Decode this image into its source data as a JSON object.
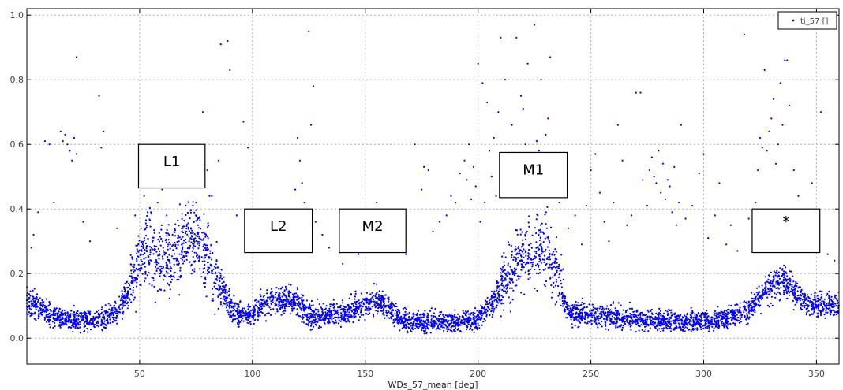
{
  "chart_data": {
    "type": "scatter",
    "title": "",
    "xlabel": "WDs_57_mean [deg]",
    "ylabel": "",
    "xlim": [
      0,
      360
    ],
    "ylim": [
      -0.08,
      1.02
    ],
    "xticks": [
      50,
      100,
      150,
      200,
      250,
      300,
      350
    ],
    "yticks": [
      0.0,
      0.2,
      0.4,
      0.6,
      0.8,
      1.0
    ],
    "xtick_labels": [
      "50",
      "100",
      "150",
      "200",
      "250",
      "300",
      "350"
    ],
    "ytick_labels": [
      "0.0",
      "0.2",
      "0.4",
      "0.6",
      "0.8",
      "1.0"
    ],
    "grid": true,
    "legend_position": "top-right",
    "series": [
      {
        "name": "ti_57 []",
        "color": "#0000ff",
        "marker": "dot",
        "trend": [
          [
            0,
            0.12
          ],
          [
            5,
            0.1
          ],
          [
            10,
            0.07
          ],
          [
            20,
            0.055
          ],
          [
            30,
            0.055
          ],
          [
            40,
            0.08
          ],
          [
            45,
            0.14
          ],
          [
            50,
            0.24
          ],
          [
            55,
            0.28
          ],
          [
            60,
            0.22
          ],
          [
            65,
            0.25
          ],
          [
            70,
            0.3
          ],
          [
            75,
            0.3
          ],
          [
            80,
            0.26
          ],
          [
            85,
            0.17
          ],
          [
            90,
            0.1
          ],
          [
            95,
            0.07
          ],
          [
            100,
            0.08
          ],
          [
            105,
            0.1
          ],
          [
            110,
            0.12
          ],
          [
            115,
            0.12
          ],
          [
            120,
            0.11
          ],
          [
            125,
            0.07
          ],
          [
            130,
            0.07
          ],
          [
            140,
            0.08
          ],
          [
            150,
            0.1
          ],
          [
            155,
            0.12
          ],
          [
            160,
            0.1
          ],
          [
            165,
            0.06
          ],
          [
            170,
            0.05
          ],
          [
            180,
            0.05
          ],
          [
            190,
            0.05
          ],
          [
            200,
            0.06
          ],
          [
            205,
            0.1
          ],
          [
            210,
            0.15
          ],
          [
            215,
            0.22
          ],
          [
            220,
            0.25
          ],
          [
            225,
            0.27
          ],
          [
            230,
            0.27
          ],
          [
            235,
            0.2
          ],
          [
            240,
            0.08
          ],
          [
            250,
            0.07
          ],
          [
            270,
            0.06
          ],
          [
            290,
            0.05
          ],
          [
            310,
            0.06
          ],
          [
            320,
            0.09
          ],
          [
            325,
            0.13
          ],
          [
            330,
            0.16
          ],
          [
            335,
            0.18
          ],
          [
            340,
            0.15
          ],
          [
            345,
            0.11
          ],
          [
            350,
            0.1
          ],
          [
            360,
            0.1
          ]
        ],
        "outliers": [
          [
            2,
            0.28
          ],
          [
            3,
            0.32
          ],
          [
            5,
            0.39
          ],
          [
            8,
            0.61
          ],
          [
            10,
            0.6
          ],
          [
            12,
            0.42
          ],
          [
            15,
            0.64
          ],
          [
            16,
            0.61
          ],
          [
            17,
            0.63
          ],
          [
            18,
            0.6
          ],
          [
            19,
            0.58
          ],
          [
            20,
            0.55
          ],
          [
            21,
            0.62
          ],
          [
            22,
            0.57
          ],
          [
            22,
            0.87
          ],
          [
            25,
            0.36
          ],
          [
            28,
            0.3
          ],
          [
            32,
            0.75
          ],
          [
            33,
            0.59
          ],
          [
            34,
            0.64
          ],
          [
            40,
            0.34
          ],
          [
            48,
            0.38
          ],
          [
            52,
            0.44
          ],
          [
            55,
            0.39
          ],
          [
            58,
            0.42
          ],
          [
            60,
            0.46
          ],
          [
            62,
            0.38
          ],
          [
            72,
            0.47
          ],
          [
            75,
            0.42
          ],
          [
            78,
            0.7
          ],
          [
            80,
            0.52
          ],
          [
            81,
            0.44
          ],
          [
            82,
            0.44
          ],
          [
            85,
            0.55
          ],
          [
            86,
            0.91
          ],
          [
            89,
            0.92
          ],
          [
            90,
            0.83
          ],
          [
            93,
            0.38
          ],
          [
            96,
            0.67
          ],
          [
            98,
            0.59
          ],
          [
            103,
            0.35
          ],
          [
            108,
            0.37
          ],
          [
            110,
            0.3
          ],
          [
            112,
            0.3
          ],
          [
            116,
            0.31
          ],
          [
            118,
            0.35
          ],
          [
            119,
            0.46
          ],
          [
            120,
            0.62
          ],
          [
            121,
            0.55
          ],
          [
            122,
            0.48
          ],
          [
            123,
            0.42
          ],
          [
            125,
            0.95
          ],
          [
            126,
            0.66
          ],
          [
            127,
            0.78
          ],
          [
            128,
            0.36
          ],
          [
            131,
            0.32
          ],
          [
            134,
            0.28
          ],
          [
            140,
            0.23
          ],
          [
            147,
            0.26
          ],
          [
            152,
            0.27
          ],
          [
            155,
            0.42
          ],
          [
            160,
            0.33
          ],
          [
            163,
            0.35
          ],
          [
            165,
            0.3
          ],
          [
            168,
            0.26
          ],
          [
            172,
            0.6
          ],
          [
            175,
            0.46
          ],
          [
            176,
            0.53
          ],
          [
            178,
            0.52
          ],
          [
            180,
            0.33
          ],
          [
            183,
            0.36
          ],
          [
            186,
            0.38
          ],
          [
            188,
            0.44
          ],
          [
            190,
            0.42
          ],
          [
            192,
            0.51
          ],
          [
            194,
            0.55
          ],
          [
            195,
            0.49
          ],
          [
            196,
            0.6
          ],
          [
            197,
            0.43
          ],
          [
            198,
            0.53
          ],
          [
            199,
            0.47
          ],
          [
            200,
            0.85
          ],
          [
            201,
            0.36
          ],
          [
            202,
            0.79
          ],
          [
            203,
            0.42
          ],
          [
            204,
            0.73
          ],
          [
            205,
            0.58
          ],
          [
            206,
            0.5
          ],
          [
            207,
            0.62
          ],
          [
            208,
            0.44
          ],
          [
            209,
            0.7
          ],
          [
            210,
            0.93
          ],
          [
            211,
            0.55
          ],
          [
            212,
            0.8
          ],
          [
            214,
            0.49
          ],
          [
            215,
            0.66
          ],
          [
            216,
            0.57
          ],
          [
            217,
            0.93
          ],
          [
            218,
            0.53
          ],
          [
            219,
            0.75
          ],
          [
            220,
            0.71
          ],
          [
            221,
            0.6
          ],
          [
            222,
            0.85
          ],
          [
            223,
            0.56
          ],
          [
            224,
            0.49
          ],
          [
            225,
            0.97
          ],
          [
            226,
            0.61
          ],
          [
            227,
            0.58
          ],
          [
            228,
            0.8
          ],
          [
            229,
            0.51
          ],
          [
            230,
            0.63
          ],
          [
            231,
            0.68
          ],
          [
            232,
            0.87
          ],
          [
            233,
            0.45
          ],
          [
            235,
            0.47
          ],
          [
            236,
            0.42
          ],
          [
            240,
            0.34
          ],
          [
            243,
            0.38
          ],
          [
            246,
            0.29
          ],
          [
            248,
            0.41
          ],
          [
            250,
            0.52
          ],
          [
            252,
            0.57
          ],
          [
            254,
            0.45
          ],
          [
            256,
            0.36
          ],
          [
            258,
            0.3
          ],
          [
            260,
            0.42
          ],
          [
            262,
            0.66
          ],
          [
            264,
            0.55
          ],
          [
            266,
            0.35
          ],
          [
            268,
            0.38
          ],
          [
            270,
            0.76
          ],
          [
            272,
            0.76
          ],
          [
            273,
            0.49
          ],
          [
            275,
            0.41
          ],
          [
            276,
            0.52
          ],
          [
            277,
            0.56
          ],
          [
            278,
            0.5
          ],
          [
            279,
            0.48
          ],
          [
            280,
            0.58
          ],
          [
            281,
            0.45
          ],
          [
            282,
            0.54
          ],
          [
            283,
            0.43
          ],
          [
            284,
            0.49
          ],
          [
            285,
            0.47
          ],
          [
            286,
            0.39
          ],
          [
            287,
            0.53
          ],
          [
            288,
            0.35
          ],
          [
            289,
            0.42
          ],
          [
            290,
            0.66
          ],
          [
            292,
            0.37
          ],
          [
            295,
            0.41
          ],
          [
            298,
            0.51
          ],
          [
            300,
            0.57
          ],
          [
            302,
            0.31
          ],
          [
            305,
            0.38
          ],
          [
            307,
            0.48
          ],
          [
            310,
            0.29
          ],
          [
            312,
            0.35
          ],
          [
            315,
            0.27
          ],
          [
            318,
            0.94
          ],
          [
            320,
            0.37
          ],
          [
            322,
            0.34
          ],
          [
            323,
            0.42
          ],
          [
            324,
            0.52
          ],
          [
            325,
            0.62
          ],
          [
            326,
            0.59
          ],
          [
            327,
            0.83
          ],
          [
            328,
            0.58
          ],
          [
            329,
            0.64
          ],
          [
            330,
            0.68
          ],
          [
            331,
            0.74
          ],
          [
            332,
            0.54
          ],
          [
            333,
            0.6
          ],
          [
            334,
            0.79
          ],
          [
            335,
            0.66
          ],
          [
            336,
            0.86
          ],
          [
            337,
            0.86
          ],
          [
            338,
            0.72
          ],
          [
            340,
            0.52
          ],
          [
            342,
            0.44
          ],
          [
            345,
            0.39
          ],
          [
            348,
            0.48
          ],
          [
            350,
            0.35
          ],
          [
            352,
            0.7
          ],
          [
            355,
            0.26
          ],
          [
            358,
            0.24
          ]
        ]
      }
    ],
    "annotations": [
      {
        "label": "L1",
        "x0": 49.5,
        "x1": 79.0,
        "y0": 0.465,
        "y1": 0.6
      },
      {
        "label": "L2",
        "x0": 96.5,
        "x1": 126.5,
        "y0": 0.265,
        "y1": 0.4
      },
      {
        "label": "M2",
        "x0": 138.5,
        "x1": 168.0,
        "y0": 0.265,
        "y1": 0.4
      },
      {
        "label": "M1",
        "x0": 209.5,
        "x1": 239.5,
        "y0": 0.435,
        "y1": 0.575
      },
      {
        "label": "*",
        "x0": 321.5,
        "x1": 351.5,
        "y0": 0.265,
        "y1": 0.4
      }
    ]
  }
}
